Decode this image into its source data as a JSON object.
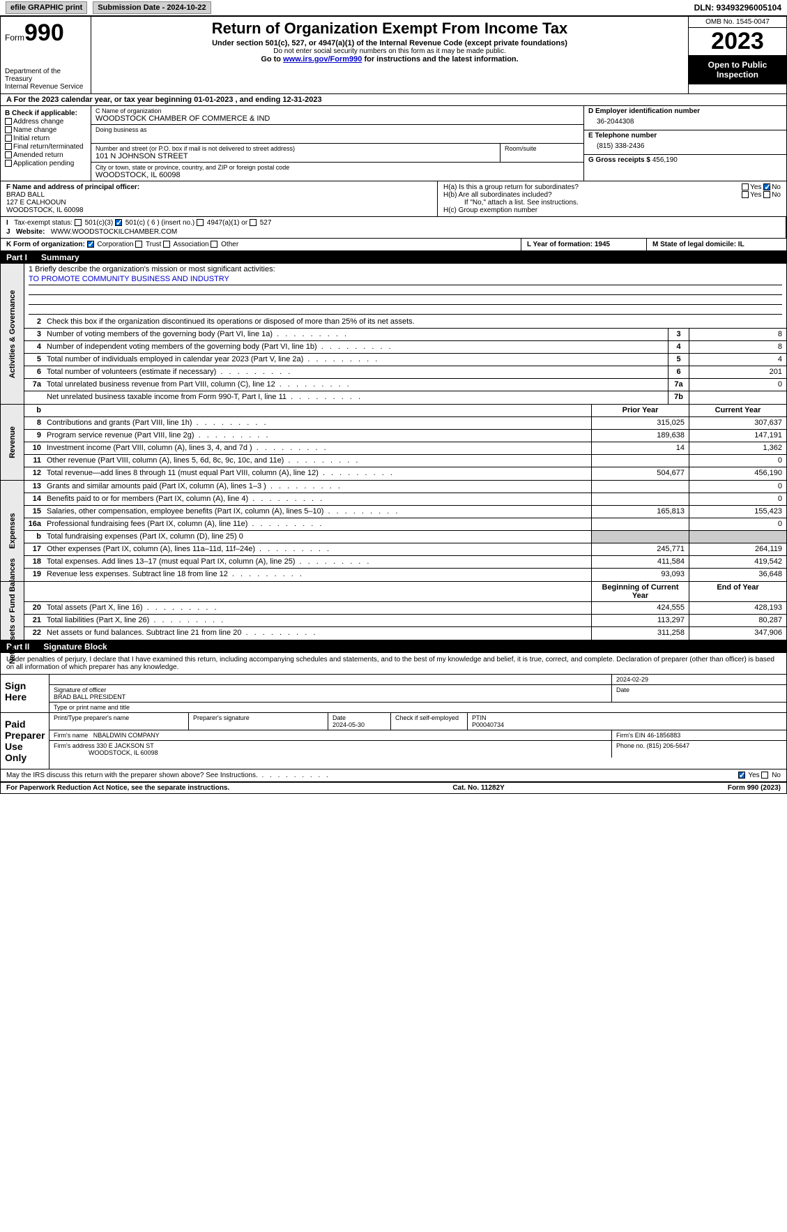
{
  "topbar": {
    "efile_label": "efile GRAPHIC print",
    "submission_label": "Submission Date - 2024-10-22",
    "dln": "DLN: 93493296005104"
  },
  "header": {
    "form_prefix": "Form",
    "form_number": "990",
    "dept": "Department of the Treasury\nInternal Revenue Service",
    "title": "Return of Organization Exempt From Income Tax",
    "subtitle": "Under section 501(c), 527, or 4947(a)(1) of the Internal Revenue Code (except private foundations)",
    "note1": "Do not enter social security numbers on this form as it may be made public.",
    "note2_prefix": "Go to ",
    "note2_link": "www.irs.gov/Form990",
    "note2_suffix": " for instructions and the latest information.",
    "omb": "OMB No. 1545-0047",
    "year": "2023",
    "open_public": "Open to Public Inspection"
  },
  "period": "For the 2023 calendar year, or tax year beginning 01-01-2023    , and ending 12-31-2023",
  "section_b": {
    "title": "B Check if applicable:",
    "items": [
      "Address change",
      "Name change",
      "Initial return",
      "Final return/terminated",
      "Amended return",
      "Application pending"
    ]
  },
  "section_c": {
    "name_label": "C Name of organization",
    "name": "WOODSTOCK CHAMBER OF COMMERCE & IND",
    "dba_label": "Doing business as",
    "street_label": "Number and street (or P.O. box if mail is not delivered to street address)",
    "street": "101 N JOHNSON STREET",
    "room_label": "Room/suite",
    "city_label": "City or town, state or province, country, and ZIP or foreign postal code",
    "city": "WOODSTOCK, IL  60098"
  },
  "section_d": {
    "label": "D Employer identification number",
    "value": "36-2044308"
  },
  "section_e": {
    "label": "E Telephone number",
    "value": "(815) 338-2436"
  },
  "section_g": {
    "label": "G Gross receipts $",
    "value": "456,190"
  },
  "section_f": {
    "label": "F  Name and address of principal officer:",
    "name": "BRAD BALL",
    "addr1": "127 E CALHOOUN",
    "addr2": "WOODSTOCK, IL  60098"
  },
  "section_h": {
    "a_label": "H(a)  Is this a group return for subordinates?",
    "b_label": "H(b)  Are all subordinates included?",
    "note": "If \"No,\" attach a list. See instructions.",
    "c_label": "H(c)  Group exemption number"
  },
  "status_row": {
    "i_label": "Tax-exempt status:",
    "opt1": "501(c)(3)",
    "opt2": "501(c) ( 6 ) (insert no.)",
    "opt3": "4947(a)(1) or",
    "opt4": "527",
    "j_label": "Website:",
    "website": "WWW.WOODSTOCKILCHAMBER.COM"
  },
  "k_row": {
    "label": "K Form of organization:",
    "opts": [
      "Corporation",
      "Trust",
      "Association",
      "Other"
    ],
    "l_label": "L Year of formation: 1945",
    "m_label": "M State of legal domicile: IL"
  },
  "part1": {
    "header_part": "Part I",
    "header_title": "Summary",
    "mission_label": "1   Briefly describe the organization's mission or most significant activities:",
    "mission_text": "TO PROMOTE COMMUNITY BUSINESS AND INDUSTRY",
    "line2": "Check this box      if the organization discontinued its operations or disposed of more than 25% of its net assets.",
    "vtabs": [
      "Activities & Governance",
      "Revenue",
      "Expenses",
      "Net Assets or Fund Balances"
    ],
    "gov_lines": [
      {
        "n": "3",
        "desc": "Number of voting members of the governing body (Part VI, line 1a)",
        "box": "3",
        "val": "8"
      },
      {
        "n": "4",
        "desc": "Number of independent voting members of the governing body (Part VI, line 1b)",
        "box": "4",
        "val": "8"
      },
      {
        "n": "5",
        "desc": "Total number of individuals employed in calendar year 2023 (Part V, line 2a)",
        "box": "5",
        "val": "4"
      },
      {
        "n": "6",
        "desc": "Total number of volunteers (estimate if necessary)",
        "box": "6",
        "val": "201"
      },
      {
        "n": "7a",
        "desc": "Total unrelated business revenue from Part VIII, column (C), line 12",
        "box": "7a",
        "val": "0"
      },
      {
        "n": "",
        "desc": "Net unrelated business taxable income from Form 990-T, Part I, line 11",
        "box": "7b",
        "val": ""
      }
    ],
    "col_headers": {
      "prior": "Prior Year",
      "current": "Current Year"
    },
    "rev_lines": [
      {
        "n": "8",
        "desc": "Contributions and grants (Part VIII, line 1h)",
        "prior": "315,025",
        "curr": "307,637"
      },
      {
        "n": "9",
        "desc": "Program service revenue (Part VIII, line 2g)",
        "prior": "189,638",
        "curr": "147,191"
      },
      {
        "n": "10",
        "desc": "Investment income (Part VIII, column (A), lines 3, 4, and 7d )",
        "prior": "14",
        "curr": "1,362"
      },
      {
        "n": "11",
        "desc": "Other revenue (Part VIII, column (A), lines 5, 6d, 8c, 9c, 10c, and 11e)",
        "prior": "",
        "curr": "0"
      },
      {
        "n": "12",
        "desc": "Total revenue—add lines 8 through 11 (must equal Part VIII, column (A), line 12)",
        "prior": "504,677",
        "curr": "456,190"
      }
    ],
    "exp_lines": [
      {
        "n": "13",
        "desc": "Grants and similar amounts paid (Part IX, column (A), lines 1–3 )",
        "prior": "",
        "curr": "0"
      },
      {
        "n": "14",
        "desc": "Benefits paid to or for members (Part IX, column (A), line 4)",
        "prior": "",
        "curr": "0"
      },
      {
        "n": "15",
        "desc": "Salaries, other compensation, employee benefits (Part IX, column (A), lines 5–10)",
        "prior": "165,813",
        "curr": "155,423"
      },
      {
        "n": "16a",
        "desc": "Professional fundraising fees (Part IX, column (A), line 11e)",
        "prior": "",
        "curr": "0"
      },
      {
        "n": "b",
        "desc": "Total fundraising expenses (Part IX, column (D), line 25) 0",
        "prior": "SHADE",
        "curr": "SHADE"
      },
      {
        "n": "17",
        "desc": "Other expenses (Part IX, column (A), lines 11a–11d, 11f–24e)",
        "prior": "245,771",
        "curr": "264,119"
      },
      {
        "n": "18",
        "desc": "Total expenses. Add lines 13–17 (must equal Part IX, column (A), line 25)",
        "prior": "411,584",
        "curr": "419,542"
      },
      {
        "n": "19",
        "desc": "Revenue less expenses. Subtract line 18 from line 12",
        "prior": "93,093",
        "curr": "36,648"
      }
    ],
    "net_headers": {
      "begin": "Beginning of Current Year",
      "end": "End of Year"
    },
    "net_lines": [
      {
        "n": "20",
        "desc": "Total assets (Part X, line 16)",
        "prior": "424,555",
        "curr": "428,193"
      },
      {
        "n": "21",
        "desc": "Total liabilities (Part X, line 26)",
        "prior": "113,297",
        "curr": "80,287"
      },
      {
        "n": "22",
        "desc": "Net assets or fund balances. Subtract line 21 from line 20",
        "prior": "311,258",
        "curr": "347,906"
      }
    ]
  },
  "part2": {
    "header_part": "Part II",
    "header_title": "Signature Block",
    "declaration": "Under penalties of perjury, I declare that I have examined this return, including accompanying schedules and statements, and to the best of my knowledge and belief, it is true, correct, and complete. Declaration of preparer (other than officer) is based on all information of which preparer has any knowledge.",
    "sign_here": "Sign Here",
    "sig_date": "2024-02-29",
    "sig_officer_label": "Signature of officer",
    "officer_name": "BRAD BALL PRESIDENT",
    "type_label": "Type or print name and title",
    "date_label": "Date",
    "paid_label": "Paid Preparer Use Only",
    "prep_name_label": "Print/Type preparer's name",
    "prep_sig_label": "Preparer's signature",
    "prep_date": "2024-05-30",
    "self_emp": "Check       if self-employed",
    "ptin_label": "PTIN",
    "ptin": "P00040734",
    "firm_name_label": "Firm's name",
    "firm_name": "NBALDWIN COMPANY",
    "firm_ein_label": "Firm's EIN",
    "firm_ein": "46-1856883",
    "firm_addr_label": "Firm's address",
    "firm_addr1": "330 E JACKSON ST",
    "firm_addr2": "WOODSTOCK, IL  60098",
    "phone_label": "Phone no.",
    "phone": "(815) 206-5647",
    "discuss": "May the IRS discuss this return with the preparer shown above? See Instructions.",
    "yes": "Yes",
    "no": "No"
  },
  "footer": {
    "left": "For Paperwork Reduction Act Notice, see the separate instructions.",
    "mid": "Cat. No. 11282Y",
    "right": "Form 990 (2023)"
  },
  "colors": {
    "link": "#0000cc",
    "black_bg": "#000000",
    "check_blue": "#0066cc",
    "shade": "#cccccc",
    "button_bg": "#d0d0d0",
    "vtab_bg": "#eaeaea"
  }
}
